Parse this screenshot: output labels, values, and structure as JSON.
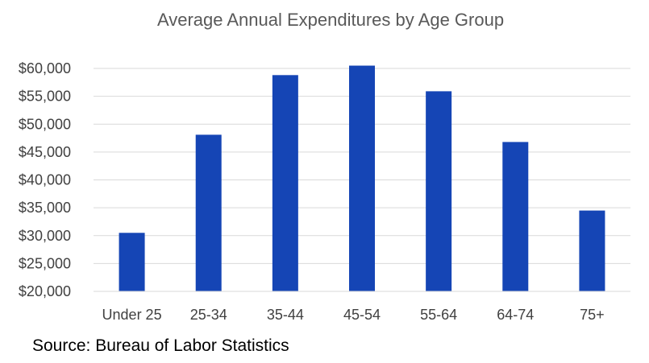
{
  "chart_data": {
    "type": "bar",
    "title": "Average Annual Expenditures by Age Group",
    "xlabel": "",
    "ylabel": "",
    "categories": [
      "Under 25",
      "25-34",
      "35-44",
      "45-54",
      "55-64",
      "64-74",
      "75+"
    ],
    "values": [
      30500,
      48100,
      58800,
      60500,
      55900,
      46800,
      34500
    ],
    "ylim": [
      20000,
      60000
    ],
    "yticks": [
      20000,
      25000,
      30000,
      35000,
      40000,
      45000,
      50000,
      55000,
      60000
    ],
    "ytick_labels": [
      "$20,000",
      "$25,000",
      "$30,000",
      "$35,000",
      "$40,000",
      "$45,000",
      "$50,000",
      "$55,000",
      "$60,000"
    ],
    "grid": true,
    "legend": "none",
    "bar_color": "#1545b5",
    "grid_color": "#d9d9d9"
  },
  "source_note": "Source: Bureau of Labor Statistics"
}
